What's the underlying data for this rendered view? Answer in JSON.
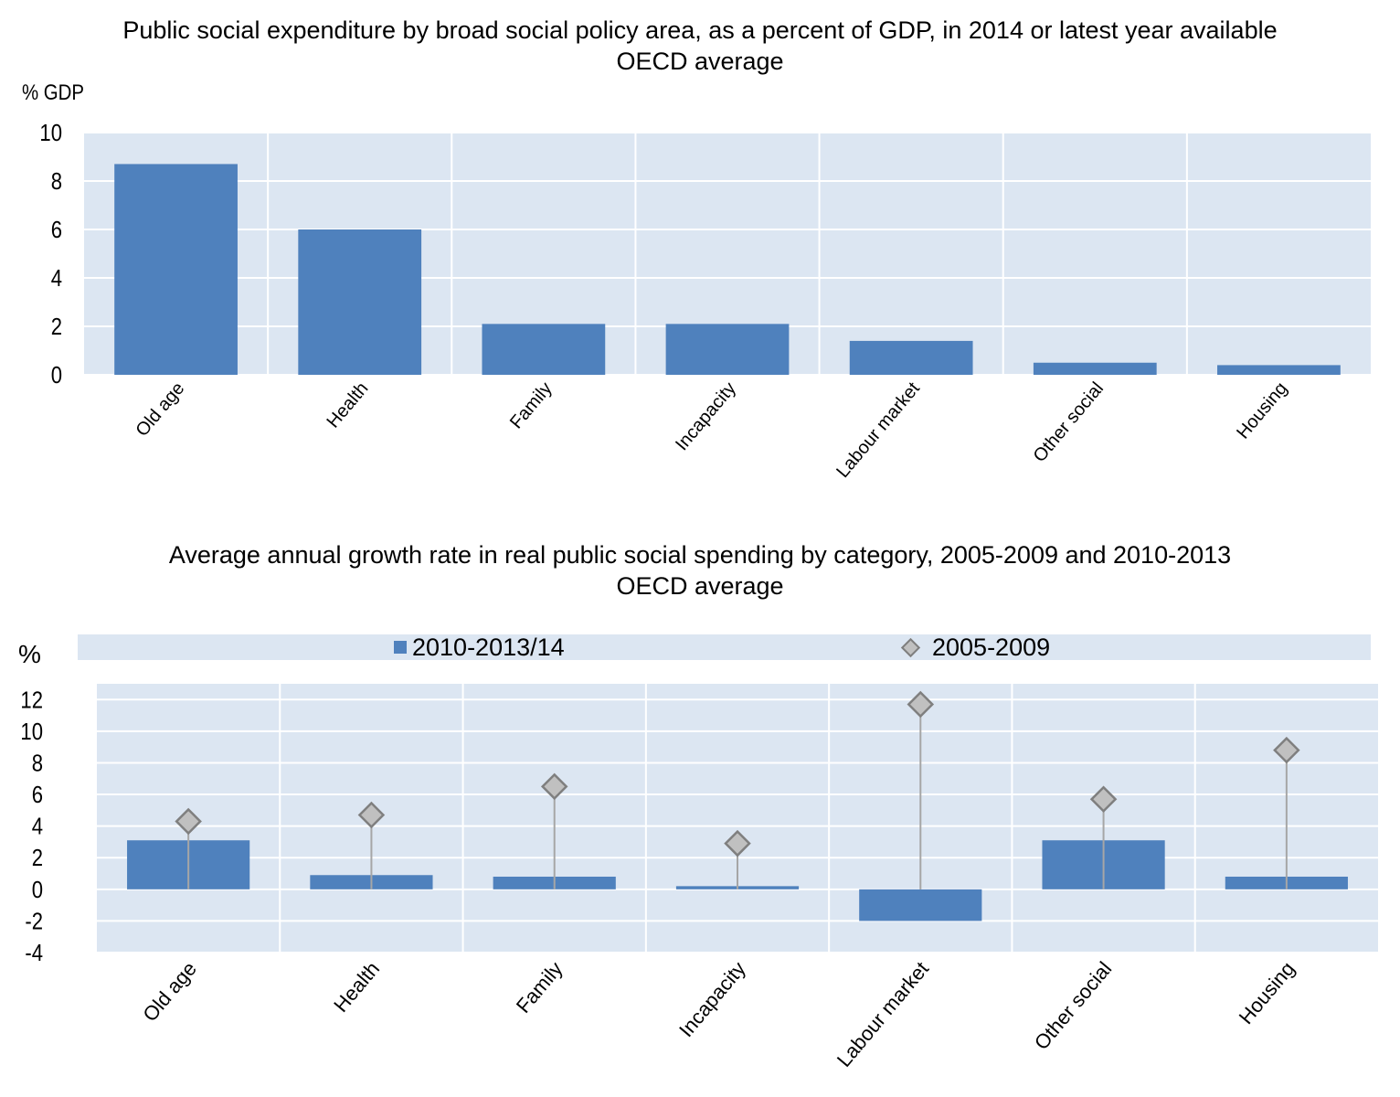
{
  "colors": {
    "bar": "#4f81bd",
    "plot_bg": "#dce6f2",
    "grid": "#ffffff",
    "marker_fill": "#c0c0c0",
    "marker_stroke": "#7f7f7f",
    "stem": "#a6a6a6"
  },
  "chart_data": [
    {
      "type": "bar",
      "title": "Public social expenditure by broad social policy area, as a percent of GDP, in 2014 or latest year available",
      "subtitle": "OECD average",
      "ylabel": "% GDP",
      "xlabel": "",
      "ylim": [
        0,
        10
      ],
      "yticks": [
        0,
        2,
        4,
        6,
        8,
        10
      ],
      "grid": true,
      "categories": [
        "Old age",
        "Health",
        "Family",
        "Incapacity",
        "Labour market",
        "Other social",
        "Housing"
      ],
      "values": [
        8.7,
        6.0,
        2.1,
        2.1,
        1.4,
        0.5,
        0.4
      ]
    },
    {
      "type": "bar",
      "title": "Average annual growth rate in real public social spending by category, 2005-2009 and 2010-2013",
      "subtitle": "OECD average",
      "ylabel": "%",
      "xlabel": "",
      "ylim": [
        -4,
        13
      ],
      "yticks": [
        -4,
        -2,
        0,
        2,
        4,
        6,
        8,
        10,
        12
      ],
      "grid": true,
      "legend_position": "top",
      "categories": [
        "Old age",
        "Health",
        "Family",
        "Incapacity",
        "Labour market",
        "Other social",
        "Housing"
      ],
      "series": [
        {
          "name": "2010-2013/14",
          "kind": "bar",
          "values": [
            3.1,
            0.9,
            0.8,
            0.2,
            -2.0,
            3.1,
            0.8
          ]
        },
        {
          "name": "2005-2009",
          "kind": "diamond-marker",
          "values": [
            4.3,
            4.7,
            6.5,
            2.9,
            11.7,
            5.7,
            8.8
          ]
        }
      ]
    }
  ]
}
